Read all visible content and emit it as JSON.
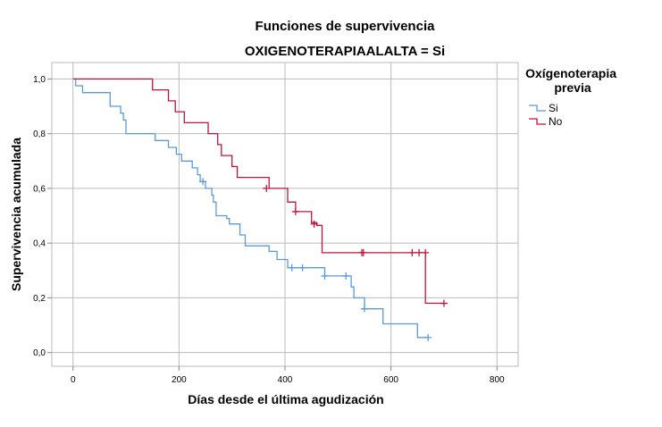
{
  "chart_data": {
    "type": "line",
    "title": "Funciones de supervivencia",
    "subtitle": "OXIGENOTERAPIAALALTA = Si",
    "xlabel": "Días desde el última agudización",
    "ylabel": "Supervivencia acumulada",
    "xlim": [
      -40,
      840
    ],
    "ylim": [
      -0.05,
      1.06
    ],
    "xticks": [
      0,
      200,
      400,
      600,
      800
    ],
    "xtick_labels": [
      "0",
      "200",
      "400",
      "600",
      "800"
    ],
    "yticks": [
      0.0,
      0.2,
      0.4,
      0.6,
      0.8,
      1.0
    ],
    "ytick_labels": [
      "0,0",
      "0,2",
      "0,4",
      "0,6",
      "0,8",
      "1,0"
    ],
    "grid": true,
    "legend": {
      "title": "Oxígenoterapia previa",
      "title_lines": [
        "Oxígenoterapia",
        "previa"
      ],
      "placement": "right"
    },
    "series": [
      {
        "name": "Si",
        "color": "#5b9bd5",
        "steps": [
          [
            0,
            1.0
          ],
          [
            5,
            0.975
          ],
          [
            18,
            0.95
          ],
          [
            70,
            0.9
          ],
          [
            90,
            0.875
          ],
          [
            95,
            0.85
          ],
          [
            100,
            0.8
          ],
          [
            155,
            0.775
          ],
          [
            180,
            0.75
          ],
          [
            195,
            0.725
          ],
          [
            205,
            0.7
          ],
          [
            225,
            0.675
          ],
          [
            235,
            0.65
          ],
          [
            240,
            0.625
          ],
          [
            250,
            0.6
          ],
          [
            262,
            0.575
          ],
          [
            265,
            0.55
          ],
          [
            270,
            0.5
          ],
          [
            290,
            0.49
          ],
          [
            295,
            0.47
          ],
          [
            315,
            0.43
          ],
          [
            325,
            0.39
          ],
          [
            370,
            0.37
          ],
          [
            385,
            0.34
          ],
          [
            405,
            0.31
          ],
          [
            475,
            0.28
          ],
          [
            525,
            0.24
          ],
          [
            530,
            0.2
          ],
          [
            550,
            0.16
          ],
          [
            585,
            0.105
          ],
          [
            650,
            0.055
          ]
        ],
        "end_x": 670,
        "censored": [
          [
            245,
            0.625
          ],
          [
            413,
            0.31
          ],
          [
            433,
            0.31
          ],
          [
            475,
            0.28
          ],
          [
            515,
            0.28
          ],
          [
            550,
            0.16
          ],
          [
            670,
            0.055
          ]
        ]
      },
      {
        "name": "No",
        "color": "#c0143c",
        "steps": [
          [
            0,
            1.0
          ],
          [
            150,
            0.96
          ],
          [
            180,
            0.92
          ],
          [
            193,
            0.88
          ],
          [
            210,
            0.84
          ],
          [
            255,
            0.8
          ],
          [
            273,
            0.76
          ],
          [
            280,
            0.72
          ],
          [
            300,
            0.68
          ],
          [
            310,
            0.64
          ],
          [
            370,
            0.6
          ],
          [
            405,
            0.55
          ],
          [
            420,
            0.515
          ],
          [
            450,
            0.475
          ],
          [
            460,
            0.465
          ],
          [
            470,
            0.365
          ],
          [
            660,
            0.365
          ],
          [
            665,
            0.18
          ]
        ],
        "end_x": 700,
        "censored": [
          [
            365,
            0.6
          ],
          [
            420,
            0.515
          ],
          [
            455,
            0.47
          ],
          [
            545,
            0.365
          ],
          [
            548,
            0.365
          ],
          [
            640,
            0.365
          ],
          [
            653,
            0.365
          ],
          [
            665,
            0.365
          ],
          [
            700,
            0.18
          ]
        ]
      }
    ]
  }
}
